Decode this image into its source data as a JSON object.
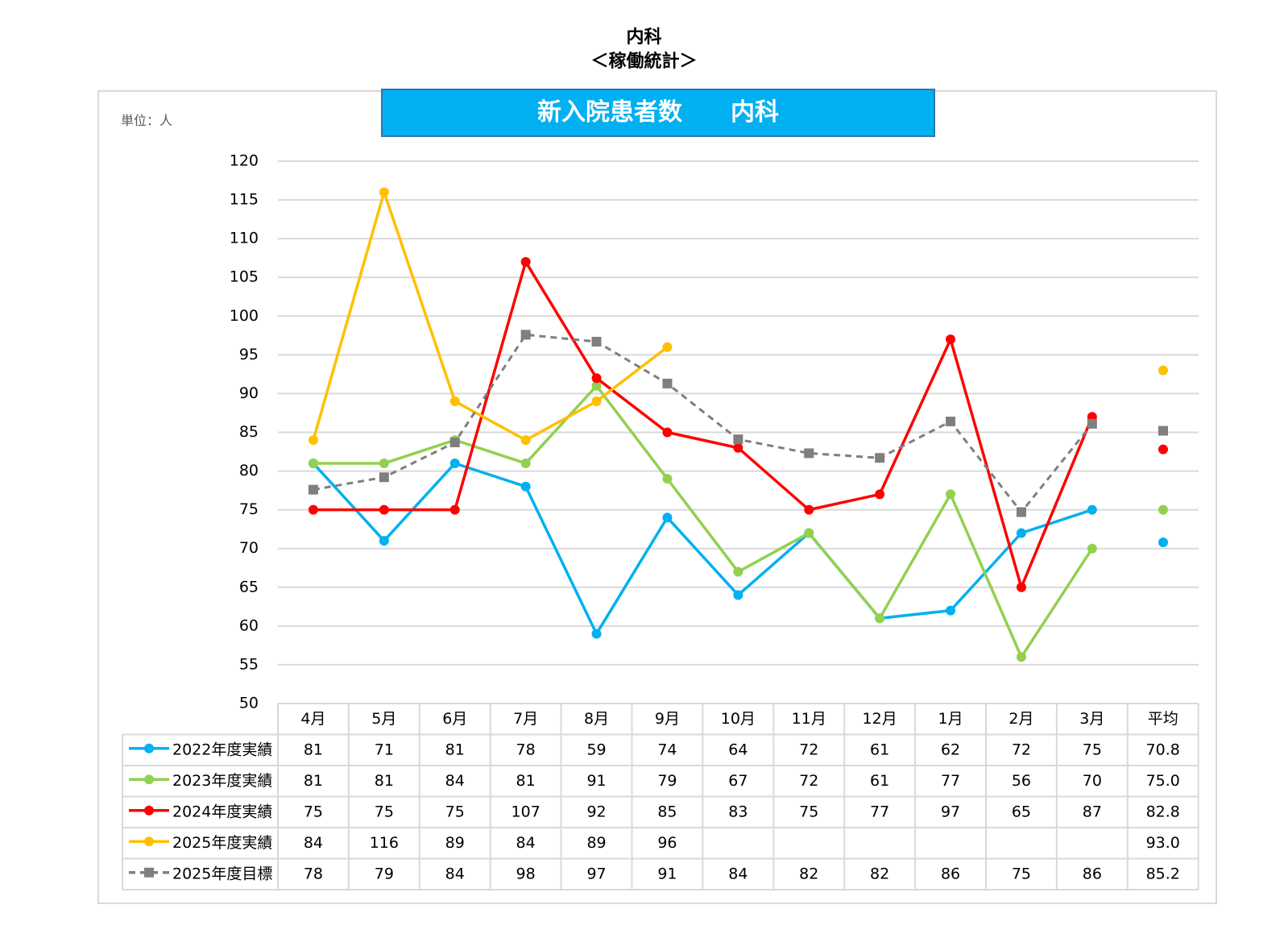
{
  "page": {
    "title_line1": "内科",
    "title_line2": "＜稼働統計＞"
  },
  "chart_data": {
    "type": "line",
    "title": "新入院患者数　　内科",
    "unit_label": "単位：人",
    "ylim": [
      50,
      120
    ],
    "yticks": [
      50,
      55,
      60,
      65,
      70,
      75,
      80,
      85,
      90,
      95,
      100,
      105,
      110,
      115,
      120
    ],
    "categories": [
      "4月",
      "5月",
      "6月",
      "7月",
      "8月",
      "9月",
      "10月",
      "11月",
      "12月",
      "1月",
      "2月",
      "3月"
    ],
    "average_label": "平均",
    "series": [
      {
        "name": "2022年度実績",
        "color": "#00b0f0",
        "marker": "circle",
        "dashed": false,
        "values": [
          81,
          71,
          81,
          78,
          59,
          74,
          64,
          72,
          61,
          62,
          72,
          75
        ],
        "labels": [
          "81",
          "71",
          "81",
          "78",
          "59",
          "74",
          "64",
          "72",
          "61",
          "62",
          "72",
          "75"
        ],
        "average": "70.8"
      },
      {
        "name": "2023年度実績",
        "color": "#92d050",
        "marker": "circle",
        "dashed": false,
        "values": [
          81,
          81,
          84,
          81,
          91,
          79,
          67,
          72,
          61,
          77,
          56,
          70
        ],
        "labels": [
          "81",
          "81",
          "84",
          "81",
          "91",
          "79",
          "67",
          "72",
          "61",
          "77",
          "56",
          "70"
        ],
        "average": "75.0"
      },
      {
        "name": "2024年度実績",
        "color": "#ff0000",
        "marker": "circle",
        "dashed": false,
        "values": [
          75,
          75,
          75,
          107,
          92,
          85,
          83,
          75,
          77,
          97,
          65,
          87
        ],
        "labels": [
          "75",
          "75",
          "75",
          "107",
          "92",
          "85",
          "83",
          "75",
          "77",
          "97",
          "65",
          "87"
        ],
        "average": "82.8"
      },
      {
        "name": "2025年度実績",
        "color": "#ffc000",
        "marker": "circle",
        "dashed": false,
        "values": [
          84,
          116,
          89,
          84,
          89,
          96,
          null,
          null,
          null,
          null,
          null,
          null
        ],
        "labels": [
          "84",
          "116",
          "89",
          "84",
          "89",
          "96",
          "",
          "",
          "",
          "",
          "",
          ""
        ],
        "average": "93.0"
      },
      {
        "name": "2025年度目標",
        "color": "#7f7f7f",
        "marker": "square",
        "dashed": true,
        "values": [
          77.6,
          79.2,
          83.7,
          97.6,
          96.7,
          91.3,
          84.1,
          82.3,
          81.7,
          86.4,
          74.7,
          86.1
        ],
        "labels": [
          "78",
          "79",
          "84",
          "98",
          "97",
          "91",
          "84",
          "82",
          "82",
          "86",
          "75",
          "86"
        ],
        "average": "85.2"
      }
    ]
  }
}
